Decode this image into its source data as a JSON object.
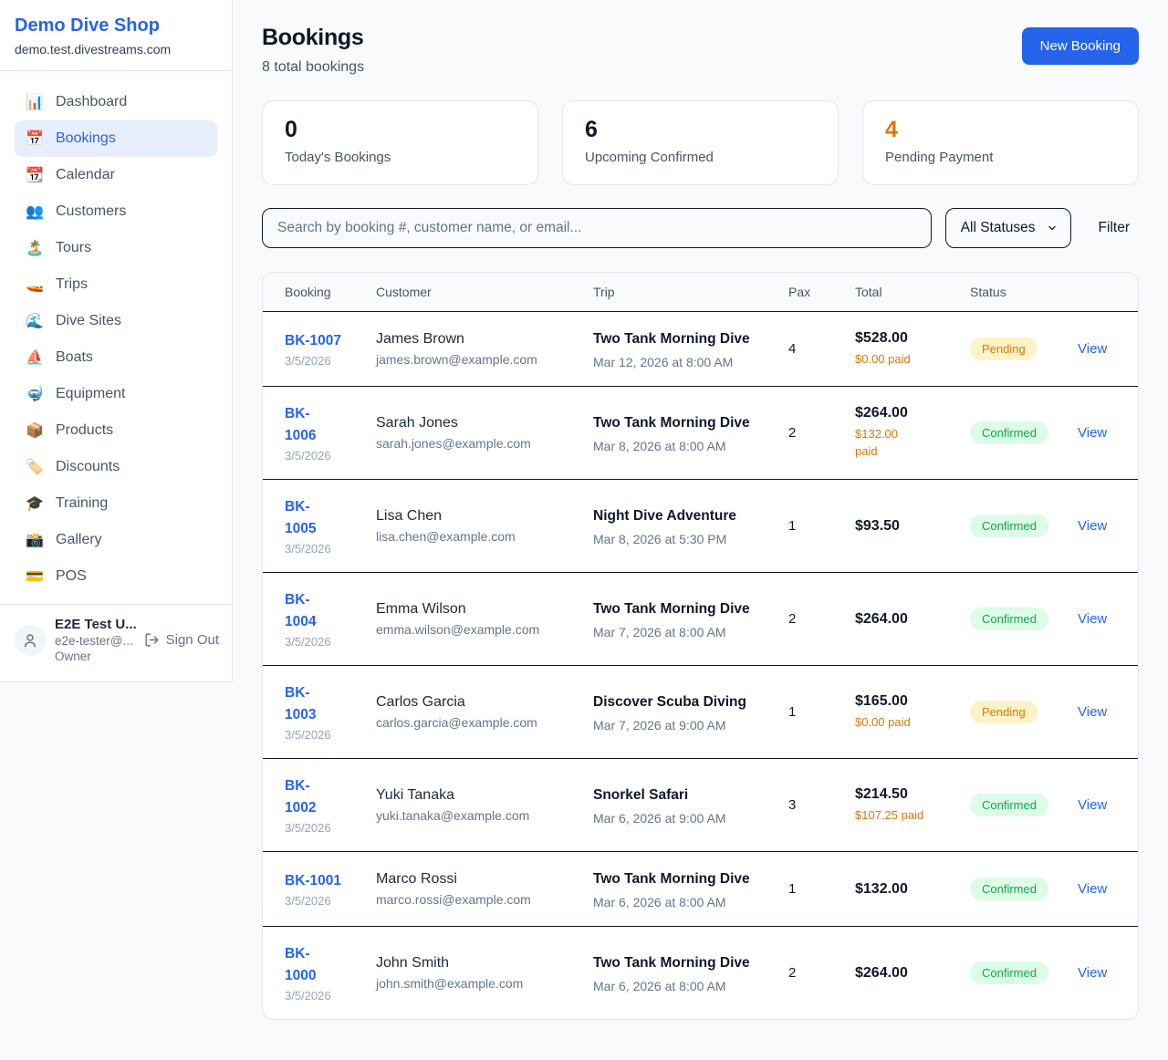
{
  "colors": {
    "accent": "#2563eb",
    "highlight": "#d97706",
    "pending_bg": "#fef3c7",
    "pending_text": "#d97706",
    "confirmed_bg": "#dcfce7",
    "confirmed_text": "#16a34a"
  },
  "sidebar": {
    "brand": {
      "name": "Demo Dive Shop",
      "domain": "demo.test.divestreams.com"
    },
    "items": [
      {
        "label": "Dashboard",
        "icon": "📊",
        "icon_name": "bar-chart-icon",
        "active": false
      },
      {
        "label": "Bookings",
        "icon": "📅",
        "icon_name": "calendar-icon",
        "active": true
      },
      {
        "label": "Calendar",
        "icon": "📆",
        "icon_name": "tear-off-calendar-icon",
        "active": false
      },
      {
        "label": "Customers",
        "icon": "👥",
        "icon_name": "users-icon",
        "active": false
      },
      {
        "label": "Tours",
        "icon": "🏝️",
        "icon_name": "island-icon",
        "active": false
      },
      {
        "label": "Trips",
        "icon": "🚤",
        "icon_name": "speedboat-icon",
        "active": false
      },
      {
        "label": "Dive Sites",
        "icon": "🌊",
        "icon_name": "wave-icon",
        "active": false
      },
      {
        "label": "Boats",
        "icon": "⛵",
        "icon_name": "sailboat-icon",
        "active": false
      },
      {
        "label": "Equipment",
        "icon": "🤿",
        "icon_name": "diving-mask-icon",
        "active": false
      },
      {
        "label": "Products",
        "icon": "📦",
        "icon_name": "package-icon",
        "active": false
      },
      {
        "label": "Discounts",
        "icon": "🏷️",
        "icon_name": "tag-icon",
        "active": false
      },
      {
        "label": "Training",
        "icon": "🎓",
        "icon_name": "graduation-cap-icon",
        "active": false
      },
      {
        "label": "Gallery",
        "icon": "📸",
        "icon_name": "camera-icon",
        "active": false
      },
      {
        "label": "POS",
        "icon": "💳",
        "icon_name": "credit-card-icon",
        "active": false
      }
    ],
    "user": {
      "name": "E2E Test U...",
      "email": "e2e-tester@...",
      "role": "Owner",
      "sign_out_label": "Sign Out"
    }
  },
  "header": {
    "title": "Bookings",
    "subtitle": "8 total bookings",
    "new_booking_label": "New Booking"
  },
  "stats": [
    {
      "value": "0",
      "label": "Today's Bookings",
      "highlight": false
    },
    {
      "value": "6",
      "label": "Upcoming Confirmed",
      "highlight": false
    },
    {
      "value": "4",
      "label": "Pending Payment",
      "highlight": true
    }
  ],
  "filters": {
    "search_placeholder": "Search by booking #, customer name, or email...",
    "search_value": "",
    "status_selected": "All Statuses",
    "filter_label": "Filter"
  },
  "table": {
    "columns": [
      "Booking",
      "Customer",
      "Trip",
      "Pax",
      "Total",
      "Status"
    ],
    "view_label": "View",
    "rows": [
      {
        "id": "BK-1007",
        "date": "3/5/2026",
        "customer": "James Brown",
        "email": "james.brown@example.com",
        "trip": "Two Tank Morning Dive",
        "datetime": "Mar 12, 2026 at 8:00 AM",
        "pax": "4",
        "total": "$528.00",
        "paid": "$0.00 paid",
        "status": "Pending",
        "variant": "pending"
      },
      {
        "id": "BK-\n1006",
        "date": "3/5/2026",
        "customer": "Sarah Jones",
        "email": "sarah.jones@example.com",
        "trip": "Two Tank Morning Dive",
        "datetime": "Mar 8, 2026 at 8:00 AM",
        "pax": "2",
        "total": "$264.00",
        "paid": "$132.00\npaid",
        "status": "Confirmed",
        "variant": "confirmed"
      },
      {
        "id": "BK-\n1005",
        "date": "3/5/2026",
        "customer": "Lisa Chen",
        "email": "lisa.chen@example.com",
        "trip": "Night Dive Adventure",
        "datetime": "Mar 8, 2026 at 5:30 PM",
        "pax": "1",
        "total": "$93.50",
        "paid": null,
        "status": "Confirmed",
        "variant": "confirmed"
      },
      {
        "id": "BK-\n1004",
        "date": "3/5/2026",
        "customer": "Emma Wilson",
        "email": "emma.wilson@example.com",
        "trip": "Two Tank Morning Dive",
        "datetime": "Mar 7, 2026 at 8:00 AM",
        "pax": "2",
        "total": "$264.00",
        "paid": null,
        "status": "Confirmed",
        "variant": "confirmed"
      },
      {
        "id": "BK-\n1003",
        "date": "3/5/2026",
        "customer": "Carlos Garcia",
        "email": "carlos.garcia@example.com",
        "trip": "Discover Scuba Diving",
        "datetime": "Mar 7, 2026 at 9:00 AM",
        "pax": "1",
        "total": "$165.00",
        "paid": "$0.00 paid",
        "status": "Pending",
        "variant": "pending"
      },
      {
        "id": "BK-\n1002",
        "date": "3/5/2026",
        "customer": "Yuki Tanaka",
        "email": "yuki.tanaka@example.com",
        "trip": "Snorkel Safari",
        "datetime": "Mar 6, 2026 at 9:00 AM",
        "pax": "3",
        "total": "$214.50",
        "paid": "$107.25 paid",
        "status": "Confirmed",
        "variant": "confirmed"
      },
      {
        "id": "BK-1001",
        "date": "3/5/2026",
        "customer": "Marco Rossi",
        "email": "marco.rossi@example.com",
        "trip": "Two Tank Morning Dive",
        "datetime": "Mar 6, 2026 at 8:00 AM",
        "pax": "1",
        "total": "$132.00",
        "paid": null,
        "status": "Confirmed",
        "variant": "confirmed"
      },
      {
        "id": "BK-\n1000",
        "date": "3/5/2026",
        "customer": "John Smith",
        "email": "john.smith@example.com",
        "trip": "Two Tank Morning Dive",
        "datetime": "Mar 6, 2026 at 8:00 AM",
        "pax": "2",
        "total": "$264.00",
        "paid": null,
        "status": "Confirmed",
        "variant": "confirmed"
      }
    ]
  }
}
